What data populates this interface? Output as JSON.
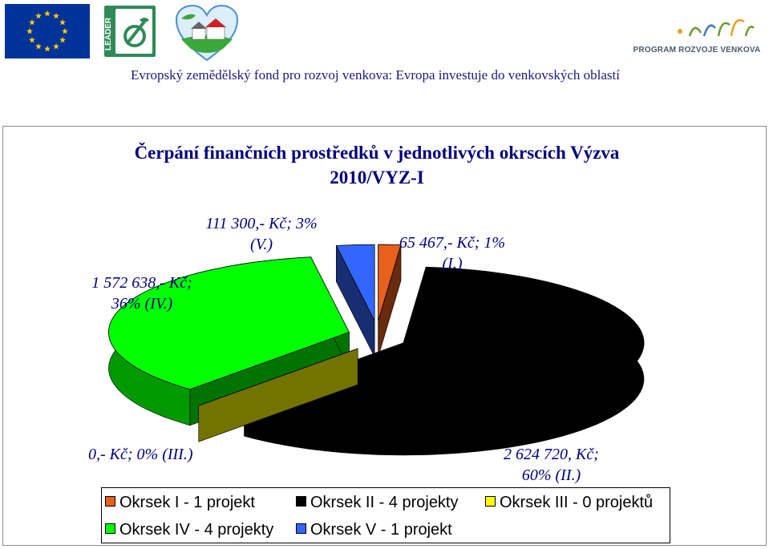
{
  "header": {
    "subtitle": "Evropský zemědělský fond pro rozvoj venkova: Evropa investuje do venkovských oblastí",
    "prv_logo_text": "PROGRAM ROZVOJE VENKOVA",
    "leader_logo_text": "LEADER"
  },
  "colors": {
    "header_text": "#1a1a7a",
    "title": "#000080",
    "eu_blue": "#003399",
    "eu_star": "#ffcc00",
    "leader_green": "#2e8b57"
  },
  "chart_data": {
    "type": "pie",
    "title": "Čerpání finančních prostředků v jednotlivých okrscích Výzva 2010/VYZ-I",
    "three_d": true,
    "exploded": true,
    "series": [
      {
        "key": "I",
        "name": "Okrsek I - 1 projekt",
        "value": 65467,
        "percent": 1,
        "color": "#e8601c",
        "label_line1": "65 467,- Kč; 1%",
        "label_line2": "(I.)"
      },
      {
        "key": "II",
        "name": "Okrsek II - 4 projekty",
        "value": 2624720,
        "percent": 60,
        "color": "#000000",
        "label_line1": "2 624 720, Kč;",
        "label_line2": "60% (II.)"
      },
      {
        "key": "III",
        "name": "Okrsek III - 0 projektů",
        "value": 0,
        "percent": 0,
        "color": "#ffff00",
        "label_line1": "0,- Kč; 0% (III.)",
        "label_line2": ""
      },
      {
        "key": "IV",
        "name": "Okrsek IV - 4 projekty",
        "value": 1572638,
        "percent": 36,
        "color": "#00ff00",
        "label_line1": "1 572 638,- Kč;",
        "label_line2": "36% (IV.)"
      },
      {
        "key": "V",
        "name": "Okrsek V - 1 projekt",
        "value": 111300,
        "percent": 3,
        "color": "#3366ff",
        "label_line1": "111 300,- Kč; 3%",
        "label_line2": "(V.)"
      }
    ],
    "legend_position": "bottom"
  }
}
